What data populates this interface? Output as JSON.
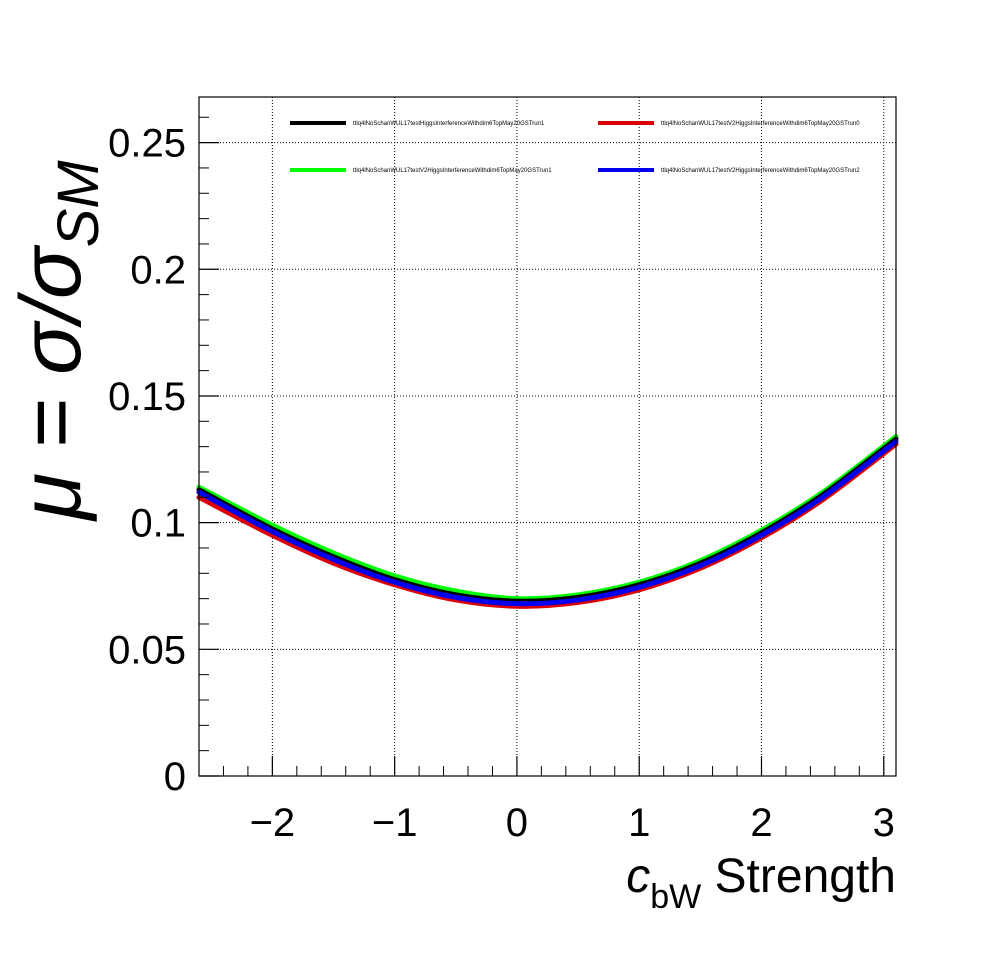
{
  "chart_data": {
    "type": "line",
    "title": "",
    "xlabel": {
      "symbol": "c",
      "subscript": "bW",
      "suffix": " Strength"
    },
    "ylabel": {
      "prefix": "μ = σ/σ",
      "subscript": "SM"
    },
    "xlim": [
      -2.6,
      3.1
    ],
    "ylim": [
      0,
      0.268
    ],
    "x_ticks": [
      -2,
      -1,
      0,
      1,
      2,
      3
    ],
    "x_tick_labels": [
      "−2",
      "−1",
      "0",
      "1",
      "2",
      "3"
    ],
    "y_ticks": [
      0,
      0.05,
      0.1,
      0.15,
      0.2,
      0.25
    ],
    "y_tick_labels": [
      "0",
      "0.05",
      "0.1",
      "0.15",
      "0.2",
      "0.25"
    ],
    "grid": true,
    "legend_position": "top",
    "series": [
      {
        "name": "ttlq4lNoSchanWUL17testHiggsInterferenceWithdim6TopMay20GSTrun1",
        "color": "#000000",
        "x": [
          -2.6,
          -2,
          -1.5,
          -1,
          -0.5,
          0,
          0.5,
          1,
          1.5,
          2,
          2.5,
          3.1
        ],
        "y": [
          0.113,
          0.0975,
          0.0865,
          0.0775,
          0.0715,
          0.069,
          0.0705,
          0.0755,
          0.084,
          0.096,
          0.111,
          0.133
        ]
      },
      {
        "name": "ttlq4lNoSchanWUL17testV2HiggsInterferenceWithdim6TopMay20GSTrun0",
        "color": "#dd0000",
        "x": [
          -2.6,
          -2,
          -1.5,
          -1,
          -0.5,
          0,
          0.5,
          1,
          1.5,
          2,
          2.5,
          3.1
        ],
        "y": [
          0.11,
          0.095,
          0.084,
          0.0755,
          0.0695,
          0.067,
          0.0685,
          0.0735,
          0.082,
          0.094,
          0.109,
          0.131
        ]
      },
      {
        "name": "ttlq4lNoSchanWUL17testV2HiggsInterferenceWithdim6TopMay20GSTrun1",
        "color": "#00ff00",
        "x": [
          -2.6,
          -2,
          -1.5,
          -1,
          -0.5,
          0,
          0.5,
          1,
          1.5,
          2,
          2.5,
          3.1
        ],
        "y": [
          0.114,
          0.099,
          0.088,
          0.079,
          0.073,
          0.07,
          0.0715,
          0.0765,
          0.085,
          0.097,
          0.112,
          0.134
        ]
      },
      {
        "name": "ttlq4lNoSchanWUL17testV2HiggsInterferenceWithdim6TopMay20GSTrun2",
        "color": "#0000ee",
        "x": [
          -2.6,
          -2,
          -1.5,
          -1,
          -0.5,
          0,
          0.5,
          1,
          1.5,
          2,
          2.5,
          3.1
        ],
        "y": [
          0.112,
          0.0965,
          0.0855,
          0.0765,
          0.0705,
          0.068,
          0.0695,
          0.0745,
          0.083,
          0.095,
          0.11,
          0.132
        ]
      }
    ]
  }
}
